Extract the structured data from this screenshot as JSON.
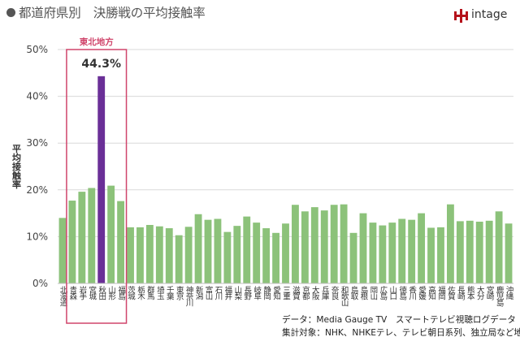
{
  "header": {
    "title": "都道府県別　決勝戦の平均接触率",
    "brand_name": "intage",
    "brand_color": "#b5121b"
  },
  "chart_data": {
    "type": "bar",
    "ylabel": "平均接触率",
    "ylim": [
      0,
      50
    ],
    "yticks": [
      "0%",
      "10%",
      "20%",
      "30%",
      "40%",
      "50%"
    ],
    "grid": true,
    "categories": [
      "北海道",
      "青森",
      "岩手",
      "宮城",
      "秋田",
      "山形",
      "福島",
      "茨城",
      "栃木",
      "群馬",
      "埼玉",
      "千葉",
      "東京",
      "神奈川",
      "新潟",
      "富山",
      "石川",
      "福井",
      "山梨",
      "長野",
      "岐阜",
      "静岡",
      "愛知",
      "三重",
      "滋賀",
      "京都",
      "大阪",
      "兵庫",
      "奈良",
      "和歌山",
      "鳥取",
      "島根",
      "岡山",
      "広島",
      "山口",
      "徳島",
      "香川",
      "愛媛",
      "高知",
      "福岡",
      "佐賀",
      "長崎",
      "熊本",
      "大分",
      "宮崎",
      "鹿児島",
      "沖縄"
    ],
    "values": [
      14.0,
      17.7,
      19.6,
      20.4,
      44.3,
      20.9,
      17.6,
      12.0,
      12.0,
      12.5,
      12.2,
      11.8,
      10.3,
      12.1,
      14.8,
      13.6,
      13.8,
      11.0,
      12.3,
      14.3,
      13.0,
      11.8,
      10.8,
      12.8,
      16.8,
      15.4,
      16.3,
      15.6,
      16.8,
      16.9,
      10.8,
      15.0,
      13.0,
      12.4,
      13.0,
      13.8,
      13.6,
      15.0,
      11.9,
      12.0,
      16.9,
      13.3,
      13.4,
      13.2,
      13.4,
      15.4,
      12.8
    ],
    "highlight_index": 4,
    "highlight_label": "44.3%",
    "region_box_label": "東北地方",
    "region_box_range": [
      1,
      6
    ],
    "colors": {
      "bar": "#8cc27a",
      "highlight": "#6a2f97",
      "region_box": "#d0456b",
      "grid": "#d9d9d9"
    }
  },
  "source": {
    "line1": "データ：Media Gauge TV　スマートテレビ視聴ログデータ",
    "line2": "集計対象：NHK、NHKEテレ、テレビ朝日系列、独立局など地上波"
  }
}
